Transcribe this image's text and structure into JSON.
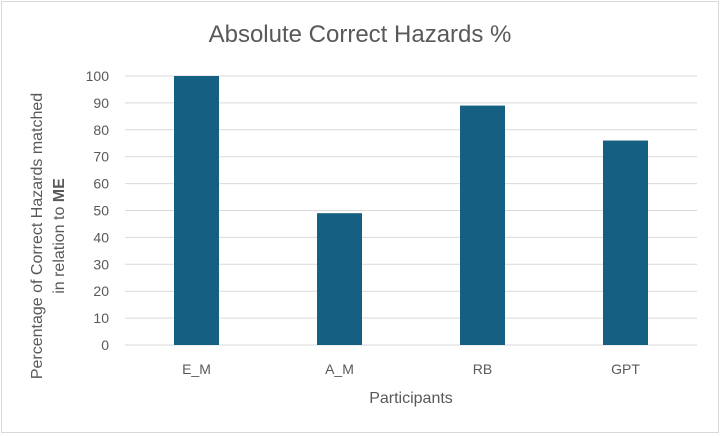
{
  "chart_data": {
    "type": "bar",
    "title": "Absolute Correct Hazards %",
    "xlabel": "Participants",
    "ylabel_line1": "Percentage of Correct Hazards matched",
    "ylabel_line2_prefix": "in relation to ",
    "ylabel_line2_bold": "ME",
    "categories": [
      "E_M",
      "A_M",
      "RB",
      "GPT"
    ],
    "values": [
      100,
      49,
      89,
      76
    ],
    "ylim": [
      0,
      100
    ],
    "yticks": [
      0,
      10,
      20,
      30,
      40,
      50,
      60,
      70,
      80,
      90,
      100
    ],
    "grid": true,
    "legend": "none",
    "colors": {
      "bar": "#156082",
      "grid": "#d9d9d9"
    }
  }
}
